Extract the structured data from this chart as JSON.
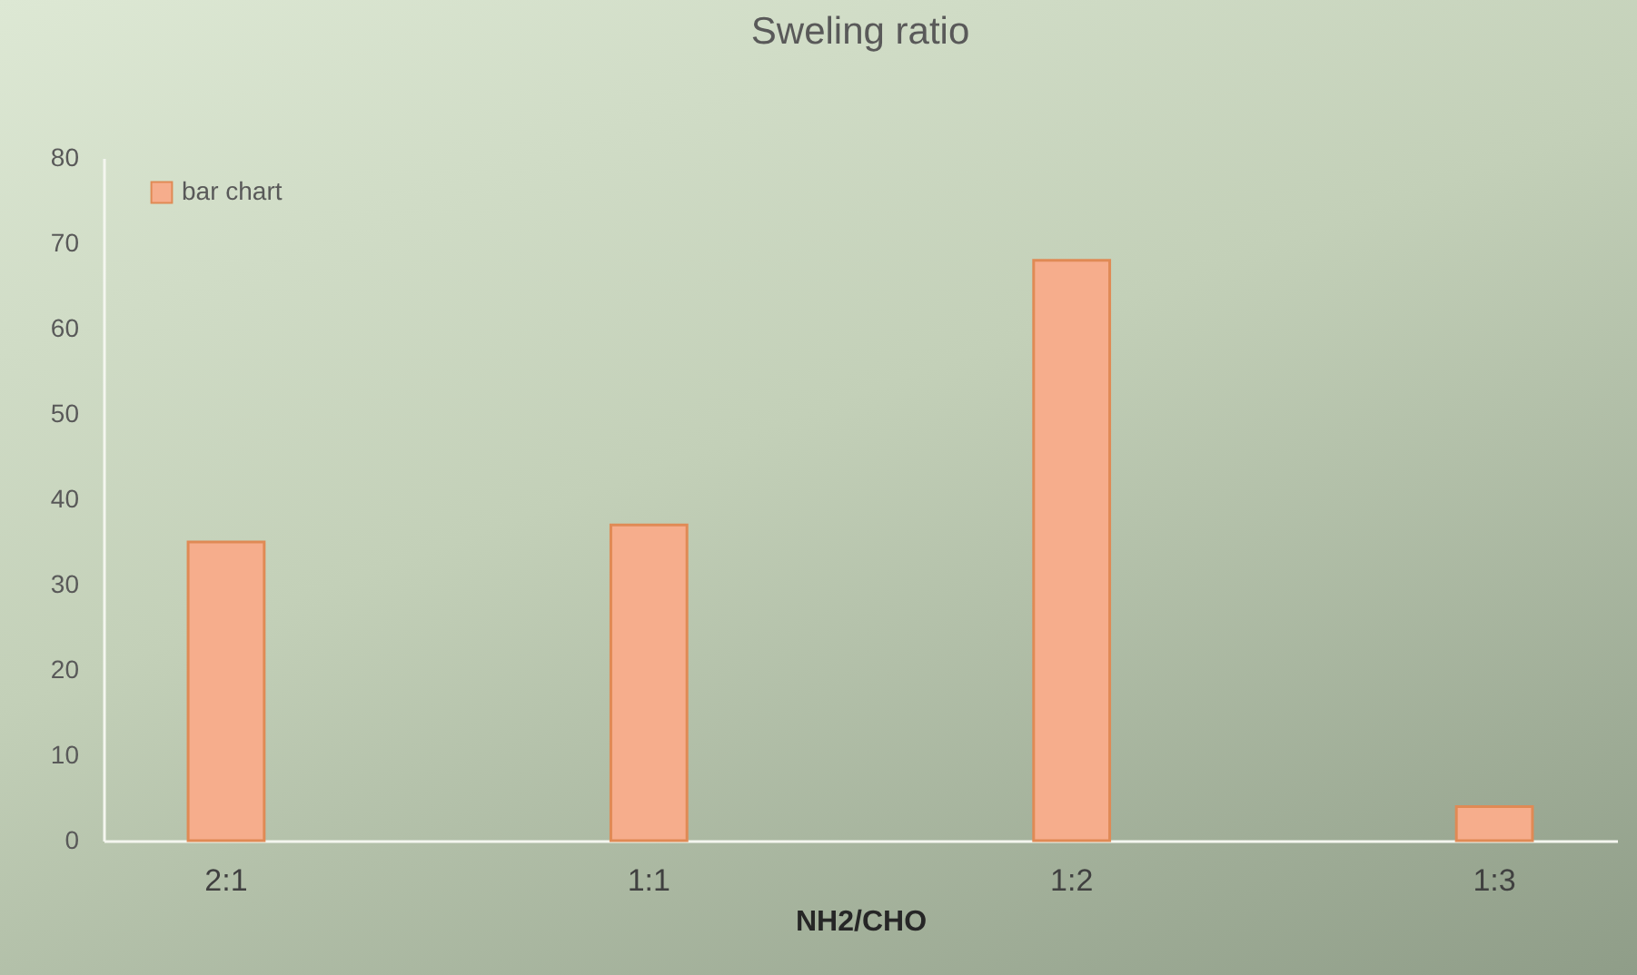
{
  "chart_data": {
    "type": "bar",
    "title": "Sweling ratio",
    "xlabel": "NH2/CHO",
    "categories": [
      "2:1",
      "1:1",
      "1:2",
      "1:3"
    ],
    "series": [
      {
        "name": "bar chart",
        "color": "#f6ad8c",
        "values": [
          35,
          37,
          68,
          4
        ]
      }
    ],
    "ylim": [
      0,
      80
    ],
    "yticks": [
      0,
      10,
      20,
      30,
      40,
      50,
      60,
      70,
      80
    ],
    "grid": false,
    "legend": "top left"
  }
}
